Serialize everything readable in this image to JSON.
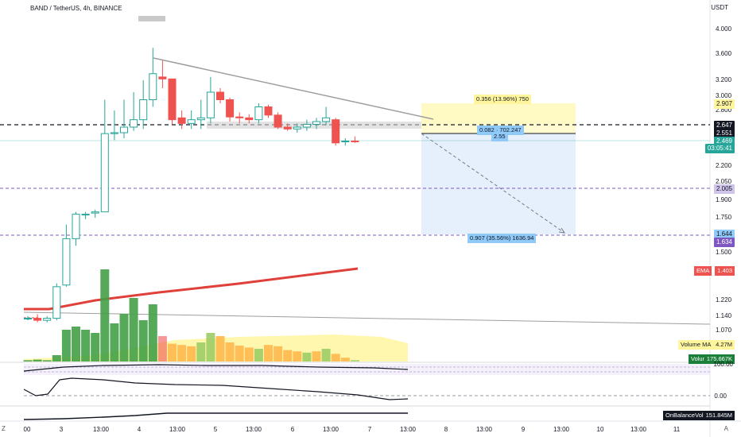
{
  "header": {
    "symbol_title": "BAND / TetherUS, 4h, BINANCE",
    "currency": "USDT"
  },
  "price_axis": [
    "4.000",
    "3.600",
    "3.200",
    "3.000",
    "2.800",
    "2.200",
    "2.050",
    "1.900",
    "1.750",
    "1.500",
    "1.220",
    "1.140",
    "1.070"
  ],
  "price_tags": {
    "target_up": "2.907",
    "line_dashed": "2.647",
    "entry": "2.551",
    "last": "2.469",
    "countdown": "03:05:41",
    "level": "2.005",
    "target_down": "1.644",
    "level_low": "1.634",
    "ema_name": "EMA",
    "ema_value": "1.403",
    "vol_ma_name": "Volume MA",
    "vol_ma_value": "4.27M",
    "volume_name": "Volume",
    "volume_value": "175.667K",
    "rsi_top": "100.00",
    "osc_zero": "0.00",
    "obv_name": "OnBalanceVolume",
    "obv_value": "151.845M"
  },
  "position_tool": {
    "profit_text": "0.356 (13.96%) 750",
    "center_text": "0.082 · 702.247",
    "center_sub": "2.55",
    "loss_text": "0.907 (35.56%) 1636.94"
  },
  "time_axis": [
    "00",
    "3",
    "13:00",
    "4",
    "13:00",
    "5",
    "13:00",
    "6",
    "13:00",
    "7",
    "13:00",
    "8",
    "13:00",
    "9",
    "13:00",
    "10",
    "13:00",
    "11"
  ],
  "corner_icons": {
    "left": "Z",
    "right": "A"
  },
  "colors": {
    "up": "#26a69a",
    "down": "#ef5350",
    "ema": "#e0403a",
    "profit_zone": "#fff59d",
    "loss_zone": "#dbe9fb",
    "level_purple": "#7e57c2",
    "label_blue": "#90caf9"
  },
  "chart_data": {
    "type": "candlestick",
    "title": "BAND / TetherUS, 4h, BINANCE",
    "ylabel": "USDT",
    "ylim": [
      1.07,
      4.0
    ],
    "candles": [
      {
        "o": 1.13,
        "h": 1.14,
        "l": 1.12,
        "c": 1.13
      },
      {
        "o": 1.13,
        "h": 1.15,
        "l": 1.11,
        "c": 1.12
      },
      {
        "o": 1.12,
        "h": 1.14,
        "l": 1.11,
        "c": 1.13
      },
      {
        "o": 1.13,
        "h": 1.32,
        "l": 1.12,
        "c": 1.3
      },
      {
        "o": 1.31,
        "h": 1.7,
        "l": 1.3,
        "c": 1.6
      },
      {
        "o": 1.6,
        "h": 1.8,
        "l": 1.55,
        "c": 1.78
      },
      {
        "o": 1.78,
        "h": 1.8,
        "l": 1.74,
        "c": 1.78
      },
      {
        "o": 1.79,
        "h": 1.82,
        "l": 1.75,
        "c": 1.8
      },
      {
        "o": 1.8,
        "h": 2.95,
        "l": 1.8,
        "c": 2.55
      },
      {
        "o": 2.55,
        "h": 2.8,
        "l": 2.48,
        "c": 2.56
      },
      {
        "o": 2.56,
        "h": 2.95,
        "l": 2.5,
        "c": 2.62
      },
      {
        "o": 2.62,
        "h": 3.05,
        "l": 2.58,
        "c": 2.7
      },
      {
        "o": 2.7,
        "h": 3.2,
        "l": 2.6,
        "c": 2.95
      },
      {
        "o": 2.95,
        "h": 3.7,
        "l": 2.85,
        "c": 3.3
      },
      {
        "o": 3.25,
        "h": 3.5,
        "l": 3.1,
        "c": 3.22
      },
      {
        "o": 3.22,
        "h": 3.22,
        "l": 2.65,
        "c": 2.7
      },
      {
        "o": 2.72,
        "h": 2.8,
        "l": 2.6,
        "c": 2.66
      },
      {
        "o": 2.66,
        "h": 2.8,
        "l": 2.6,
        "c": 2.7
      },
      {
        "o": 2.7,
        "h": 2.95,
        "l": 2.6,
        "c": 2.72
      },
      {
        "o": 2.72,
        "h": 3.25,
        "l": 2.66,
        "c": 3.05
      },
      {
        "o": 3.05,
        "h": 3.1,
        "l": 2.9,
        "c": 2.95
      },
      {
        "o": 2.95,
        "h": 2.98,
        "l": 2.68,
        "c": 2.73
      },
      {
        "o": 2.73,
        "h": 2.78,
        "l": 2.66,
        "c": 2.72
      },
      {
        "o": 2.72,
        "h": 2.76,
        "l": 2.66,
        "c": 2.7
      },
      {
        "o": 2.7,
        "h": 2.9,
        "l": 2.66,
        "c": 2.85
      },
      {
        "o": 2.85,
        "h": 2.88,
        "l": 2.72,
        "c": 2.75
      },
      {
        "o": 2.75,
        "h": 2.78,
        "l": 2.6,
        "c": 2.62
      },
      {
        "o": 2.62,
        "h": 2.66,
        "l": 2.58,
        "c": 2.6
      },
      {
        "o": 2.6,
        "h": 2.66,
        "l": 2.56,
        "c": 2.62
      },
      {
        "o": 2.62,
        "h": 2.7,
        "l": 2.58,
        "c": 2.65
      },
      {
        "o": 2.65,
        "h": 2.72,
        "l": 2.6,
        "c": 2.68
      },
      {
        "o": 2.68,
        "h": 2.85,
        "l": 2.64,
        "c": 2.72
      },
      {
        "o": 2.7,
        "h": 2.72,
        "l": 2.42,
        "c": 2.45
      },
      {
        "o": 2.47,
        "h": 2.5,
        "l": 2.42,
        "c": 2.47
      },
      {
        "o": 2.47,
        "h": 2.52,
        "l": 2.45,
        "c": 2.469
      }
    ],
    "volume": [
      0.2,
      0.3,
      0.2,
      1.0,
      5.0,
      5.5,
      5.0,
      4.5,
      14.5,
      6.0,
      7.5,
      10.0,
      6.5,
      9.0,
      4.0,
      2.8,
      2.6,
      2.4,
      3.0,
      4.5,
      4.0,
      3.0,
      2.5,
      2.2,
      2.0,
      2.6,
      2.4,
      1.8,
      1.6,
      1.4,
      1.6,
      2.0,
      1.2,
      0.6,
      0.2
    ],
    "volume_colors": [
      "g",
      "g",
      "g",
      "g",
      "g",
      "g",
      "g",
      "g",
      "g",
      "g",
      "g",
      "g",
      "g",
      "g",
      "r",
      "o",
      "o",
      "o",
      "lg",
      "lg",
      "o",
      "o",
      "o",
      "o",
      "lg",
      "o",
      "o",
      "o",
      "o",
      "lg",
      "o",
      "lg",
      "o",
      "o",
      "lg"
    ],
    "ema_label": "EMA 1.403"
  }
}
